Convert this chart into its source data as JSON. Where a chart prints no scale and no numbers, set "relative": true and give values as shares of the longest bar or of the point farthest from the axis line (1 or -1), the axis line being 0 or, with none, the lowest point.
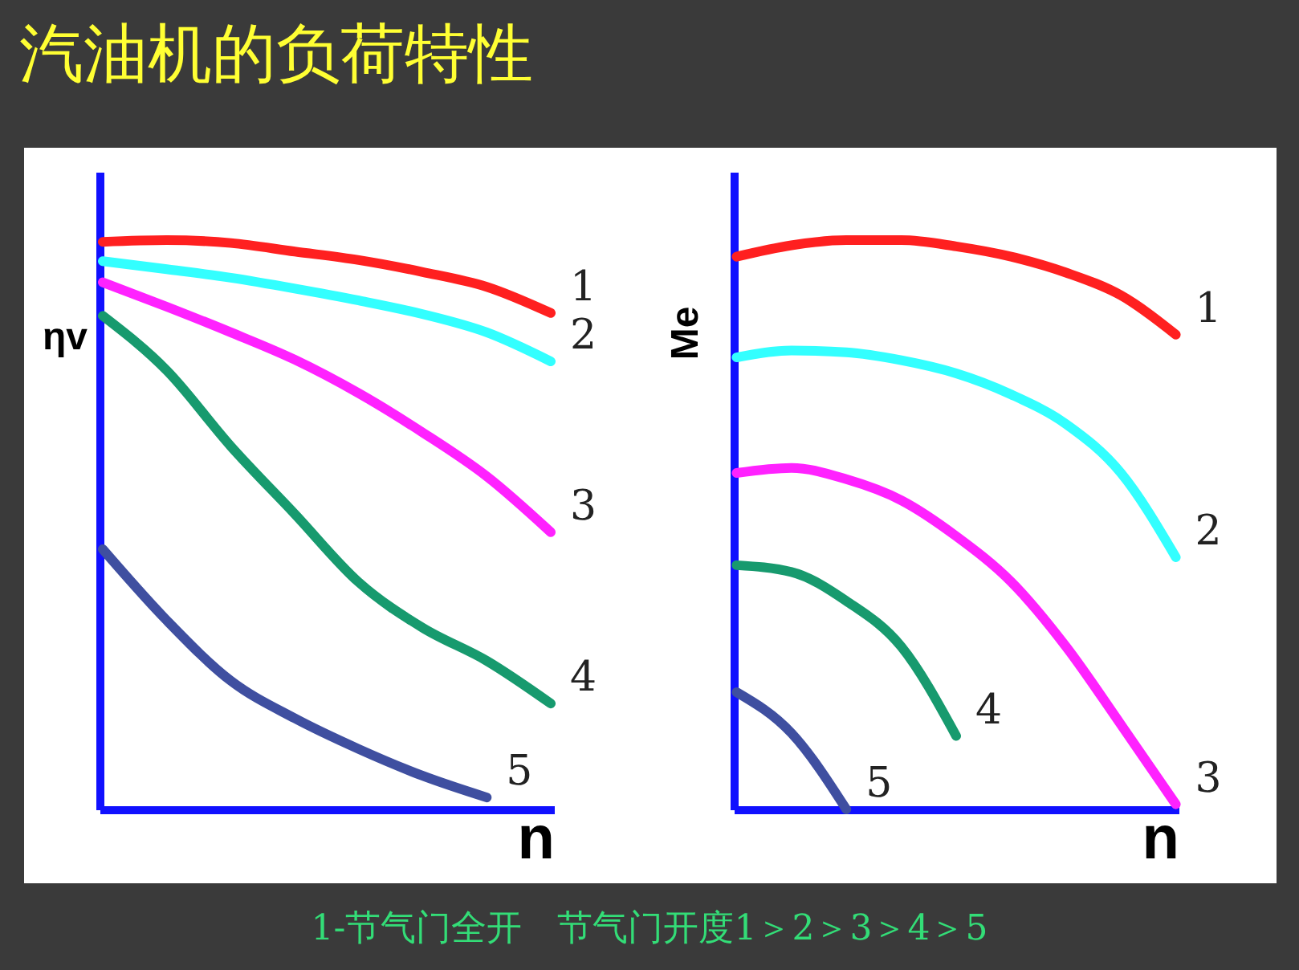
{
  "chart_data": [
    {
      "type": "line",
      "title": "汽油机的负荷特性",
      "annotations": [
        "1-节气门全开　节气门开度1＞2＞3＞4＞5"
      ],
      "xlabel": "n",
      "ylabel": "ηv",
      "relative": true,
      "legend": false,
      "marker": "none",
      "categories": [
        null,
        null,
        null,
        null,
        null,
        null,
        null,
        null
      ],
      "series": [
        {
          "name": "1",
          "color": "#ff2020",
          "values": [
            0.997,
            1,
            0.995,
            0.98,
            0.965,
            0.944,
            0.918,
            0.872
          ]
        },
        {
          "name": "2",
          "color": "#33ffff",
          "values": [
            0.963,
            0.949,
            0.934,
            0.915,
            0.894,
            0.87,
            0.838,
            0.787
          ]
        },
        {
          "name": "3",
          "color": "#ff22ff",
          "values": [
            0.926,
            0.883,
            0.838,
            0.79,
            0.731,
            0.662,
            0.585,
            0.487
          ]
        },
        {
          "name": "4",
          "color": "#179a6e",
          "values": [
            0.867,
            0.771,
            0.638,
            0.519,
            0.399,
            0.319,
            0.261,
            0.186
          ]
        },
        {
          "name": "5",
          "color": "#3f4fa0",
          "values": [
            0.457,
            0.332,
            0.226,
            0.16,
            0.106,
            0.059,
            0.021,
            null
          ]
        }
      ]
    },
    {
      "type": "line",
      "xlabel": "n",
      "ylabel": "Me",
      "relative": true,
      "legend": false,
      "marker": "none",
      "categories": [
        null,
        null,
        null,
        null,
        null,
        null,
        null,
        null,
        null
      ],
      "series": [
        {
          "name": "1",
          "color": "#ff2020",
          "values": [
            0.971,
            0.991,
            1,
            1,
            0.989,
            0.971,
            0.943,
            0.903,
            0.834
          ]
        },
        {
          "name": "2",
          "color": "#33ffff",
          "values": [
            0.794,
            0.806,
            0.803,
            0.789,
            0.766,
            0.729,
            0.677,
            0.591,
            0.443
          ]
        },
        {
          "name": "3",
          "color": "#ff22ff",
          "values": [
            0.591,
            0.6,
            0.58,
            0.543,
            0.48,
            0.4,
            0.286,
            0.149,
            0.009
          ]
        },
        {
          "name": "4",
          "color": "#179a6e",
          "values": [
            0.429,
            0.417,
            0.366,
            0.286,
            0.129,
            null,
            null,
            null,
            null
          ]
        },
        {
          "name": "5",
          "color": "#3f4fa0",
          "values": [
            0.206,
            0.134,
            0.0,
            null,
            null,
            null,
            null,
            null,
            null
          ]
        }
      ]
    }
  ]
}
